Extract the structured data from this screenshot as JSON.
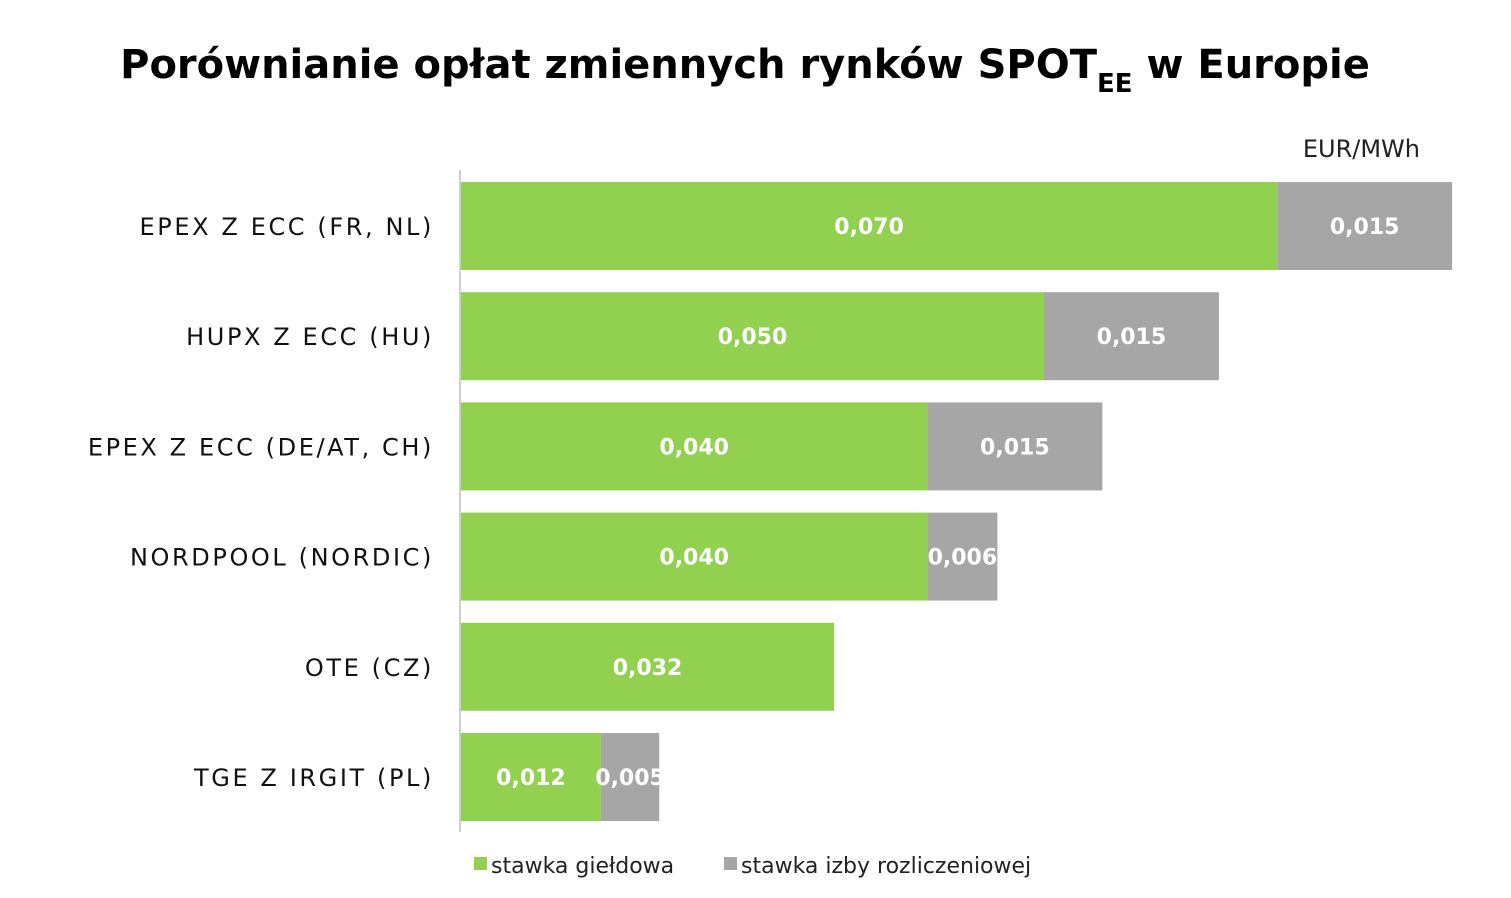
{
  "chart_data": {
    "type": "bar",
    "orientation": "horizontal",
    "stacked": true,
    "title": "Porównianie opłat zmiennych rynków SPOT",
    "title_subscript": "EE",
    "title_suffix": " w Europie",
    "unit": "EUR/MWh",
    "categories": [
      "EPEX Z ECC (FR, NL)",
      "HUPX Z ECC (HU)",
      "EPEX Z ECC (DE/AT, CH)",
      "NORDPOOL (NORDIC)",
      "OTE (CZ)",
      "TGE Z IRGIT (PL)"
    ],
    "series": [
      {
        "name": "stawka giełdowa",
        "color": "#92d050",
        "values": [
          0.07,
          0.05,
          0.04,
          0.04,
          0.032,
          0.012
        ],
        "labels": [
          "0,070",
          "0,050",
          "0,040",
          "0,040",
          "0,032",
          "0,012"
        ]
      },
      {
        "name": "stawka izby rozliczeniowej",
        "color": "#a6a6a6",
        "values": [
          0.015,
          0.015,
          0.015,
          0.006,
          0.0,
          0.005
        ],
        "labels": [
          "0,015",
          "0,015",
          "0,015",
          "0,006",
          "",
          "0,005"
        ]
      }
    ],
    "xlim": [
      0,
      0.085
    ],
    "grid": false,
    "legend_position": "bottom"
  }
}
